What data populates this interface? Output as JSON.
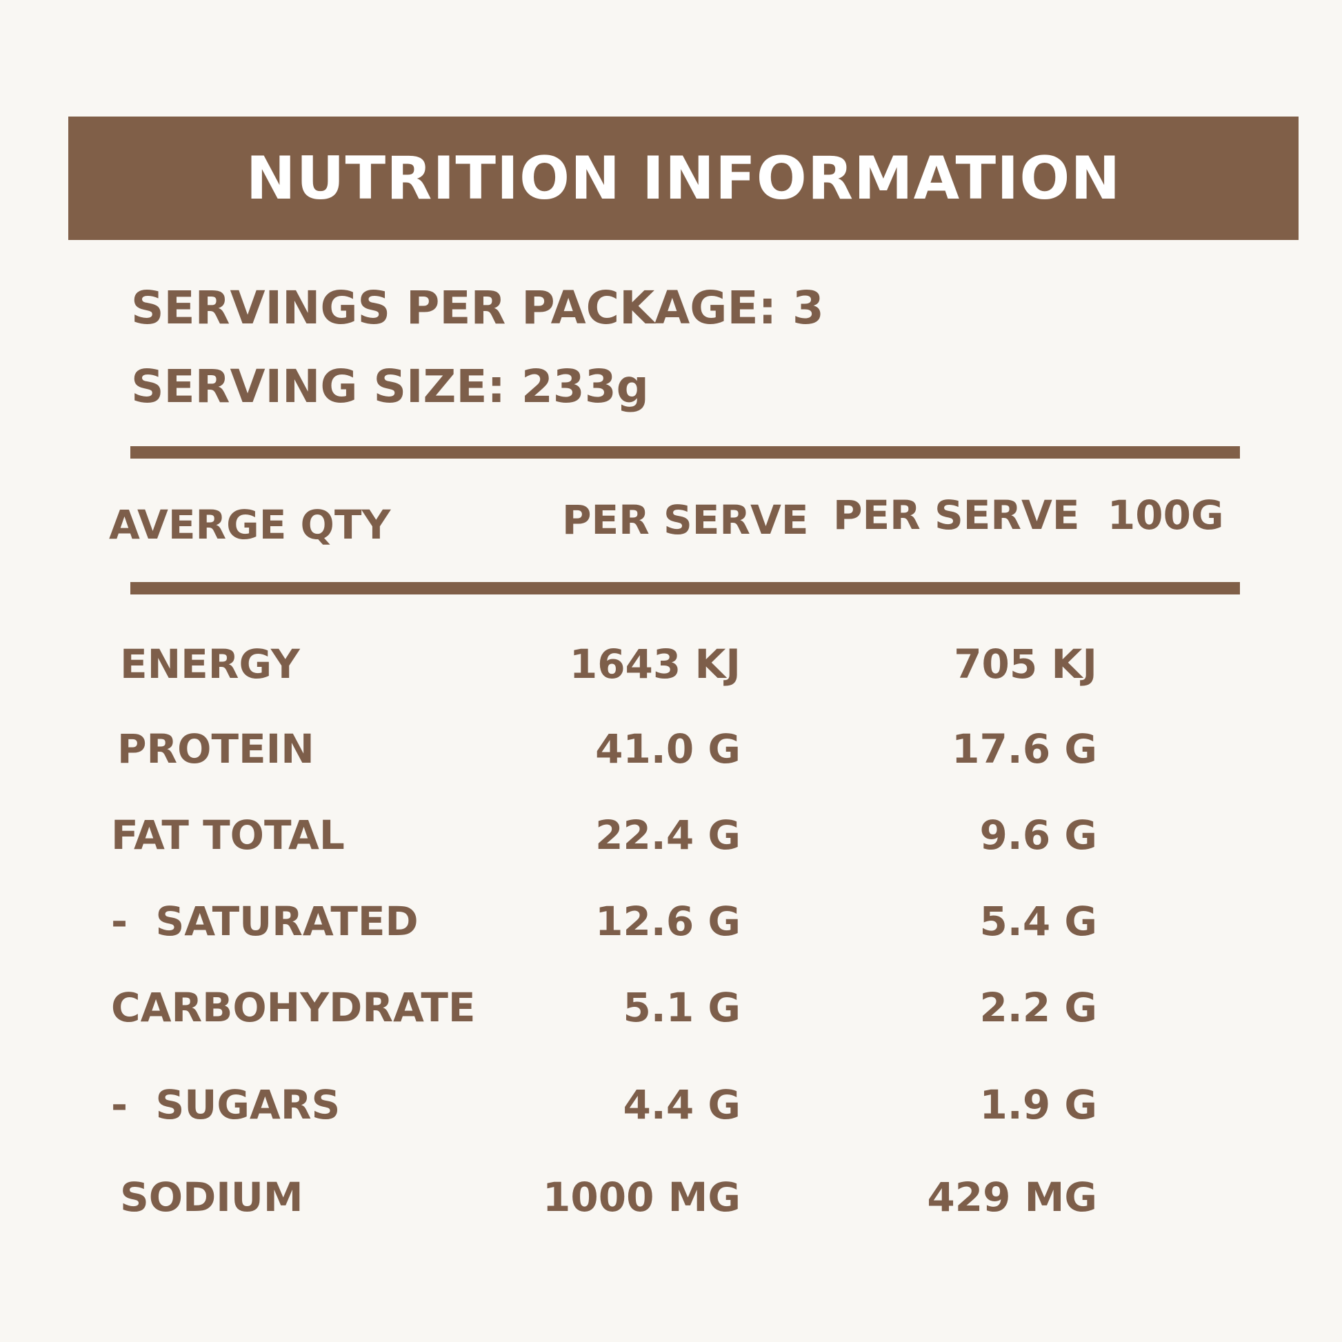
{
  "title": "NUTRITION INFORMATION",
  "servings_per_package": "SERVINGS PER PACKAGE: 3",
  "serving_size": "SERVING SIZE: 233g",
  "headers": {
    "qty": "AVERGE QTY",
    "per_serve": "PER SERVE",
    "per_100g": "PER SERVE  100G"
  },
  "rows": [
    {
      "label": "ENERGY",
      "per_serve": "1643 KJ",
      "per_100g": "705 KJ"
    },
    {
      "label": "PROTEIN",
      "per_serve": "41.0 G",
      "per_100g": "17.6 G"
    },
    {
      "label": "FAT TOTAL",
      "per_serve": "22.4 G",
      "per_100g": "9.6 G"
    },
    {
      "label": "-  SATURATED",
      "per_serve": "12.6 G",
      "per_100g": "5.4 G"
    },
    {
      "label": "CARBOHYDRATE",
      "per_serve": "5.1 G",
      "per_100g": "2.2 G"
    },
    {
      "label": "-  SUGARS",
      "per_serve": "4.4 G",
      "per_100g": "1.9 G"
    },
    {
      "label": "SODIUM",
      "per_serve": "1000 MG",
      "per_100g": "429 MG"
    }
  ],
  "colors": {
    "background": "#f9f7f3",
    "brand_brown": "#805f48",
    "text_brown": "#7d5e4a",
    "banner_text": "#ffffff"
  }
}
